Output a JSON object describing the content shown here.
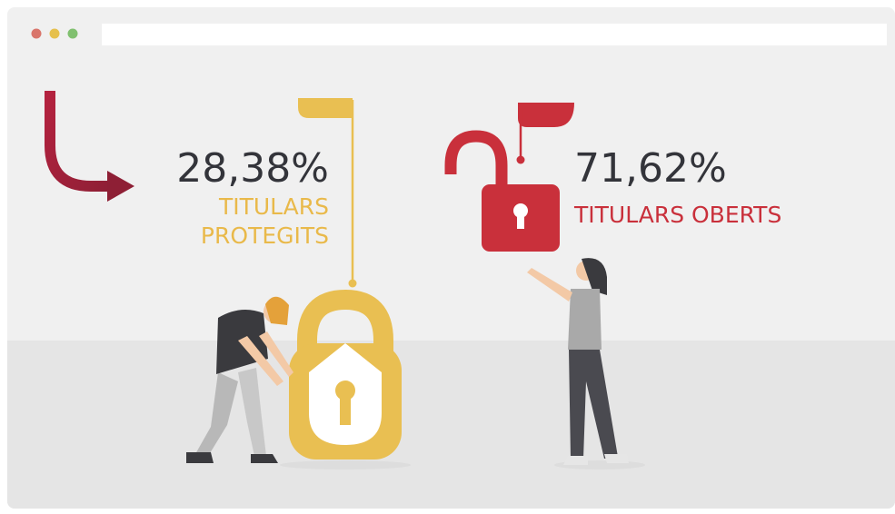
{
  "stats": [
    {
      "percent": "28,38%",
      "label_lines": [
        "TITULARS",
        "PROTEGITS"
      ]
    },
    {
      "percent": "71,62%",
      "label_lines": [
        "TITULARS OBERTS"
      ]
    }
  ]
}
